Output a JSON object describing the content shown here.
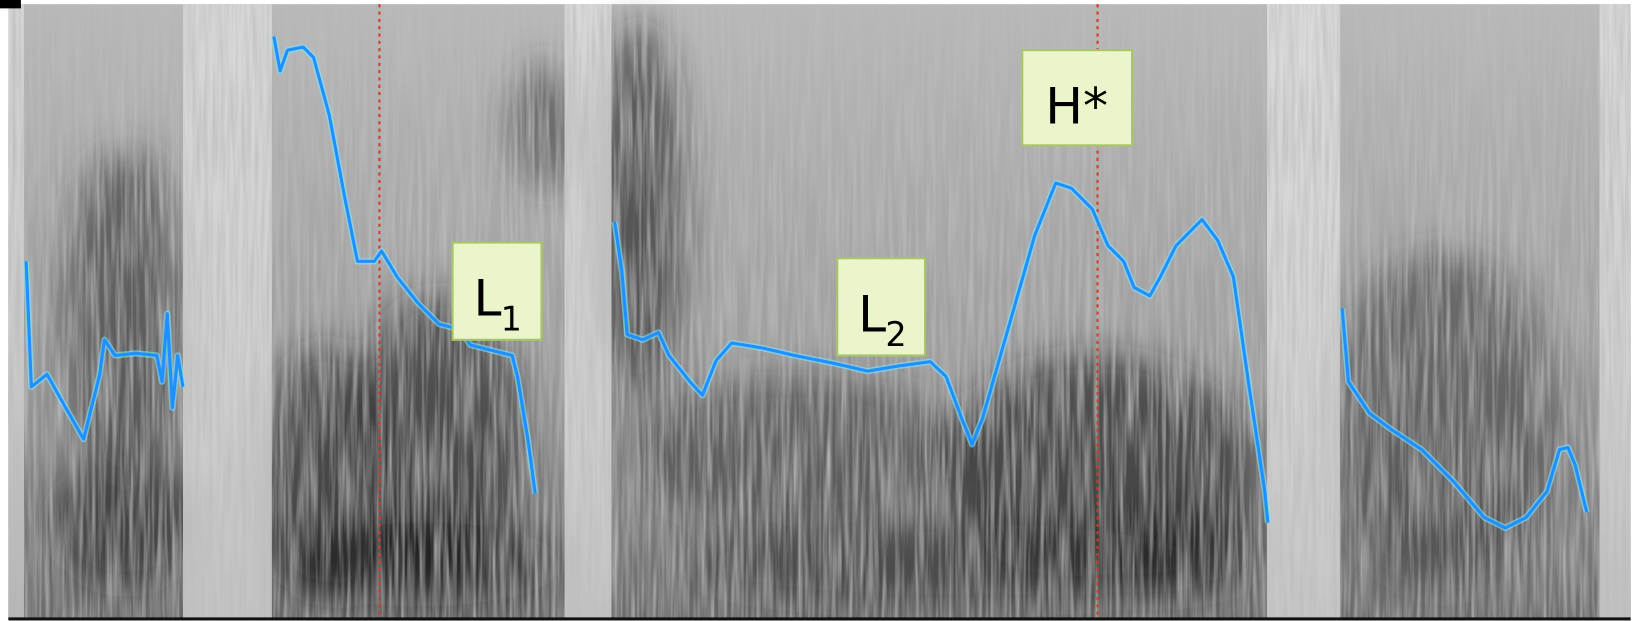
{
  "labels": [
    {
      "text": "L",
      "subscript": "1"
    },
    {
      "text": "L",
      "subscript": "2"
    },
    {
      "text": "H*"
    }
  ]
}
